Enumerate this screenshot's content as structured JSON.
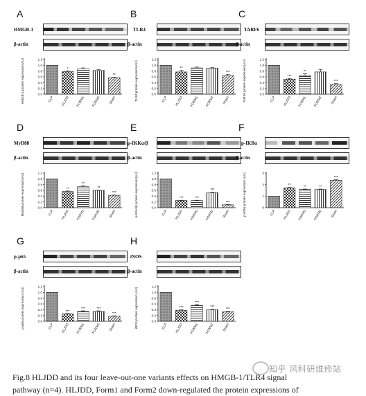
{
  "panels": [
    {
      "letter": "A",
      "blots": [
        "HMGB-1",
        "β-actin"
      ],
      "ylabel": "HMGB-1 protein expression(AU)",
      "ylim": [
        0,
        1.2
      ],
      "ticks": [
        "0.0",
        "0.2",
        "0.4",
        "0.6",
        "0.8",
        "1.0",
        "1.2"
      ]
    },
    {
      "letter": "B",
      "blots": [
        "TLR4",
        "β-actin"
      ],
      "ylabel": "TLR4 protein expression(AU)",
      "ylim": [
        0,
        1.2
      ],
      "ticks": [
        "0.0",
        "0.2",
        "0.4",
        "0.6",
        "0.8",
        "1.0",
        "1.2"
      ]
    },
    {
      "letter": "C",
      "blots": [
        "TARF6",
        "β-actin"
      ],
      "ylabel": "TARF6 protein expression(AU)",
      "ylim": [
        0,
        1.2
      ],
      "ticks": [
        "0.0",
        "0.2",
        "0.4",
        "0.6",
        "0.8",
        "1.0",
        "1.2"
      ]
    },
    {
      "letter": "D",
      "blots": [
        "MyD88",
        "β-actin"
      ],
      "ylabel": "MyD88 protein expression(AU)",
      "ylim": [
        0,
        1.2
      ],
      "ticks": [
        "0.0",
        "0.2",
        "0.4",
        "0.6",
        "0.8",
        "1.0",
        "1.2"
      ]
    },
    {
      "letter": "E",
      "blots": [
        "p-IKKα/β",
        "β-actin"
      ],
      "ylabel": "p-IKKα/β protein expression(AU)",
      "ylim": [
        0,
        1.2
      ],
      "ticks": [
        "0.0",
        "0.2",
        "0.4",
        "0.6",
        "0.8",
        "1.0",
        "1.2"
      ]
    },
    {
      "letter": "F",
      "blots": [
        "p-IKBα",
        "β-actin"
      ],
      "ylabel": "p-IKBα protein expression (AU)",
      "ylim": [
        0,
        3
      ],
      "ticks": [
        "0",
        "1",
        "2",
        "3"
      ]
    },
    {
      "letter": "G",
      "blots": [
        "p-p65",
        "β-actin"
      ],
      "ylabel": "p-p65 protein expression (AU)",
      "ylim": [
        0,
        1.2
      ],
      "ticks": [
        "0.0",
        "0.2",
        "0.4",
        "0.6",
        "0.8",
        "1.0",
        "1.2"
      ]
    },
    {
      "letter": "H",
      "blots": [
        "iNOS",
        "β-actin"
      ],
      "ylabel": "iNOS protein expression (AU)",
      "ylim": [
        0,
        1.2
      ],
      "ticks": [
        "0.0",
        "0.2",
        "0.4",
        "0.6",
        "0.8",
        "1.0",
        "1.2"
      ]
    }
  ],
  "chart_data": [
    {
      "type": "bar",
      "categories": [
        "CLP",
        "HLJDD",
        "FORM1",
        "FORM2",
        "Sham"
      ],
      "values": [
        1.0,
        0.78,
        0.88,
        0.82,
        0.57
      ],
      "errors": [
        0,
        0.03,
        0.03,
        0.03,
        0.02
      ],
      "significance": [
        "",
        "*",
        "",
        "",
        "**"
      ],
      "ylabel": "HMGB-1 protein expression(AU)",
      "ylim": [
        0,
        1.2
      ]
    },
    {
      "type": "bar",
      "categories": [
        "CLP",
        "HLJDD",
        "FORM1",
        "FORM2",
        "Sham"
      ],
      "values": [
        1.0,
        0.77,
        0.91,
        0.9,
        0.64
      ],
      "errors": [
        0,
        0.06,
        0.03,
        0.02,
        0.05
      ],
      "significance": [
        "",
        "**",
        "",
        "",
        "***"
      ],
      "ylabel": "TLR4 protein expression(AU)",
      "ylim": [
        0,
        1.2
      ]
    },
    {
      "type": "bar",
      "categories": [
        "CLP",
        "HLJDD",
        "FORM1",
        "FORM2",
        "Sham"
      ],
      "values": [
        1.0,
        0.52,
        0.64,
        0.77,
        0.34
      ],
      "errors": [
        0,
        0.02,
        0.07,
        0.09,
        0.03
      ],
      "significance": [
        "",
        "***",
        "**",
        "",
        "***"
      ],
      "ylabel": "TARF6 protein expression(AU)",
      "ylim": [
        0,
        1.2
      ]
    },
    {
      "type": "bar",
      "categories": [
        "CLP",
        "HLJDD",
        "FORM1",
        "FORM2",
        "Sham"
      ],
      "values": [
        1.0,
        0.56,
        0.73,
        0.6,
        0.43
      ],
      "errors": [
        0,
        0.02,
        0.03,
        0.01,
        0.01
      ],
      "significance": [
        "",
        "**",
        "**",
        "**",
        "***"
      ],
      "ylabel": "MyD88 protein expression(AU)",
      "ylim": [
        0,
        1.2
      ]
    },
    {
      "type": "bar",
      "categories": [
        "CLP",
        "HLJDD",
        "FORM1",
        "FORM2",
        "Sham"
      ],
      "values": [
        1.0,
        0.25,
        0.25,
        0.52,
        0.1
      ],
      "errors": [
        0,
        0.01,
        0.01,
        0.02,
        0.01
      ],
      "significance": [
        "",
        "***",
        "***",
        "***",
        "***"
      ],
      "ylabel": "p-IKKα/β protein expression(AU)",
      "ylim": [
        0,
        1.2
      ]
    },
    {
      "type": "bar",
      "categories": [
        "CLP",
        "HLJDD",
        "FORM1",
        "FORM2",
        "Sham"
      ],
      "values": [
        1.0,
        1.72,
        1.58,
        1.58,
        2.38
      ],
      "errors": [
        0,
        0.04,
        0.04,
        0.04,
        0.05
      ],
      "significance": [
        "",
        "**",
        "**",
        "**",
        "***"
      ],
      "ylabel": "p-IKBα protein expression (AU)",
      "ylim": [
        0,
        3
      ]
    },
    {
      "type": "bar",
      "categories": [
        "CLP",
        "HLJDD",
        "FORM1",
        "FORM2",
        "Sham"
      ],
      "values": [
        1.0,
        0.26,
        0.34,
        0.34,
        0.17
      ],
      "errors": [
        0,
        0.01,
        0.02,
        0.02,
        0.02
      ],
      "significance": [
        "",
        "***",
        "***",
        "***",
        "***"
      ],
      "ylabel": "p-p65 protein expression (AU)",
      "ylim": [
        0,
        1.2
      ]
    },
    {
      "type": "bar",
      "categories": [
        "CLP",
        "HLJDD",
        "FORM1",
        "FORM2",
        "Sham"
      ],
      "values": [
        1.0,
        0.38,
        0.55,
        0.4,
        0.33
      ],
      "errors": [
        0,
        0.02,
        0.03,
        0.02,
        0.02
      ],
      "significance": [
        "",
        "***",
        "***",
        "***",
        "***"
      ],
      "ylabel": "iNOS protein expression (AU)",
      "ylim": [
        0,
        1.2
      ]
    }
  ],
  "caption": {
    "line1": "Fig.8 HLJDD and its four leave-out-one variants effects on HMGB-1/TLR4 signal",
    "line2": "pathway (n=4). HLJDD, Form1 and Form2 down-regulated the protein expressions of"
  },
  "watermark": "知乎 风科研维修站"
}
